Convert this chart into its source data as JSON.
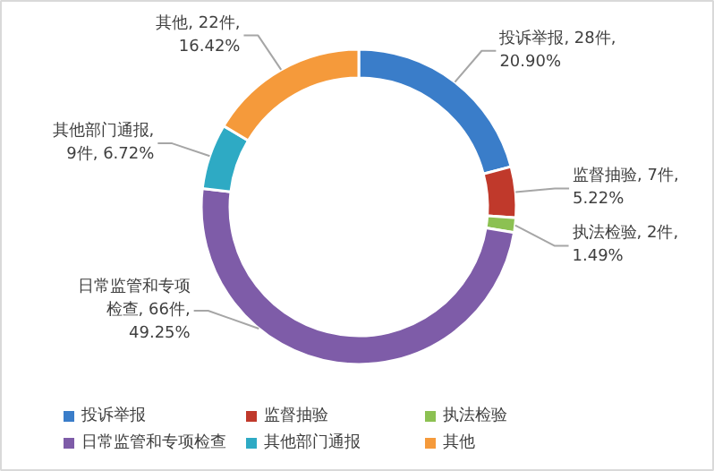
{
  "chart_data": {
    "type": "donut",
    "categories": [
      "投诉举报",
      "监督抽验",
      "执法检验",
      "日常监管和专项检查",
      "其他部门通报",
      "其他"
    ],
    "values": [
      28,
      7,
      2,
      66,
      9,
      22
    ],
    "colors": [
      "#3a7dc9",
      "#c0392b",
      "#8cc152",
      "#7e5ca8",
      "#2eaac4",
      "#f59a3b"
    ],
    "value_labels": [
      "投诉举报, 28件, 20.90%",
      "监督抽验, 7件, 5.22%",
      "执法检验, 2件, 1.49%",
      "日常监管和专项检查, 66件, 49.25%",
      "其他部门通报, 9件, 6.72%",
      "其他, 22件, 16.42%"
    ],
    "legend": "bottom"
  }
}
